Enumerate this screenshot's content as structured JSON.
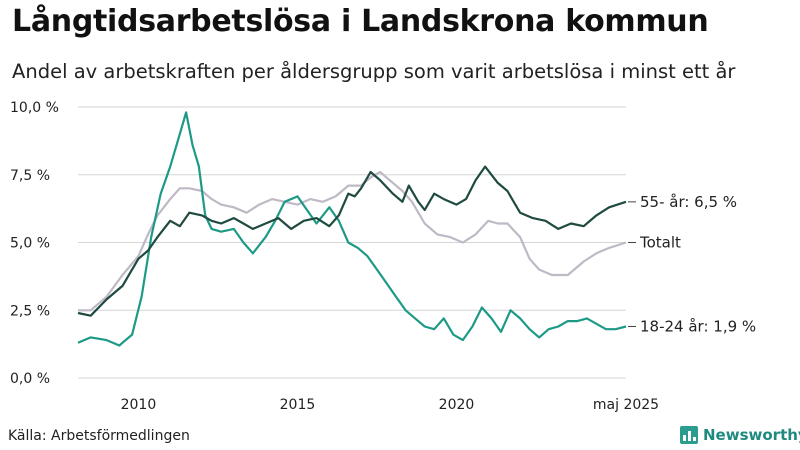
{
  "title": "Långtidsarbetslösa i Landskrona kommun",
  "subtitle": "Andel av arbetskraften per åldersgrupp som varit arbetslösa i minst ett år",
  "source": "Källa: Arbetsförmedlingen",
  "brand": "Newsworthy",
  "colors": {
    "series55": "#1f4a40",
    "total": "#bfb9c6",
    "youth": "#1d9a86",
    "brand": "#2a9d8f"
  },
  "chart_data": {
    "type": "line",
    "title": "Långtidsarbetslösa i Landskrona kommun",
    "ylim": [
      0,
      10
    ],
    "xlim": [
      2008.1,
      2025.33
    ],
    "y_ticks": [
      0,
      2.5,
      5,
      7.5,
      10
    ],
    "y_tick_labels": [
      "0,0 %",
      "2,5 %",
      "5,0 %",
      "7,5 %",
      "10,0 %"
    ],
    "x_ticks": [
      2010,
      2015,
      2020,
      2025.33
    ],
    "x_tick_labels": [
      "2010",
      "2015",
      "2020",
      "maj 2025"
    ],
    "grid": true,
    "series": [
      {
        "name": "55- år",
        "end_label": "55- år: 6,5 %",
        "color": "#1f4a40",
        "x": [
          2008.1,
          2008.5,
          2009.0,
          2009.5,
          2010.0,
          2010.3,
          2010.6,
          2011.0,
          2011.3,
          2011.6,
          2012.0,
          2012.3,
          2012.6,
          2013.0,
          2013.3,
          2013.6,
          2014.0,
          2014.4,
          2014.8,
          2015.2,
          2015.6,
          2016.0,
          2016.3,
          2016.6,
          2016.8,
          2017.0,
          2017.3,
          2017.6,
          2018.0,
          2018.3,
          2018.5,
          2018.8,
          2019.0,
          2019.3,
          2019.6,
          2020.0,
          2020.3,
          2020.6,
          2020.9,
          2021.1,
          2021.3,
          2021.6,
          2022.0,
          2022.4,
          2022.8,
          2023.2,
          2023.6,
          2024.0,
          2024.4,
          2024.8,
          2025.33
        ],
        "values": [
          2.4,
          2.3,
          2.9,
          3.4,
          4.4,
          4.7,
          5.2,
          5.8,
          5.6,
          6.1,
          6.0,
          5.8,
          5.7,
          5.9,
          5.7,
          5.5,
          5.7,
          5.9,
          5.5,
          5.8,
          5.9,
          5.6,
          6.0,
          6.8,
          6.7,
          7.0,
          7.6,
          7.3,
          6.8,
          6.5,
          7.1,
          6.5,
          6.2,
          6.8,
          6.6,
          6.4,
          6.6,
          7.3,
          7.8,
          7.5,
          7.2,
          6.9,
          6.1,
          5.9,
          5.8,
          5.5,
          5.7,
          5.6,
          6.0,
          6.3,
          6.5
        ]
      },
      {
        "name": "Totalt",
        "end_label": "Totalt",
        "color": "#bfb9c6",
        "x": [
          2008.1,
          2008.5,
          2009.0,
          2009.5,
          2010.0,
          2010.3,
          2010.6,
          2011.0,
          2011.3,
          2011.6,
          2012.0,
          2012.3,
          2012.6,
          2013.0,
          2013.4,
          2013.8,
          2014.2,
          2014.6,
          2015.0,
          2015.4,
          2015.8,
          2016.2,
          2016.6,
          2017.0,
          2017.3,
          2017.6,
          2018.0,
          2018.3,
          2018.6,
          2019.0,
          2019.4,
          2019.8,
          2020.2,
          2020.6,
          2021.0,
          2021.3,
          2021.6,
          2022.0,
          2022.3,
          2022.6,
          2023.0,
          2023.5,
          2024.0,
          2024.4,
          2024.8,
          2025.33
        ],
        "values": [
          2.5,
          2.5,
          3.0,
          3.8,
          4.5,
          5.3,
          6.0,
          6.6,
          7.0,
          7.0,
          6.9,
          6.6,
          6.4,
          6.3,
          6.1,
          6.4,
          6.6,
          6.5,
          6.4,
          6.6,
          6.5,
          6.7,
          7.1,
          7.1,
          7.4,
          7.6,
          7.2,
          6.9,
          6.5,
          5.7,
          5.3,
          5.2,
          5.0,
          5.3,
          5.8,
          5.7,
          5.7,
          5.2,
          4.4,
          4.0,
          3.8,
          3.8,
          4.3,
          4.6,
          4.8,
          5.0
        ]
      },
      {
        "name": "18-24 år",
        "end_label": "18-24 år: 1,9 %",
        "color": "#1d9a86",
        "x": [
          2008.1,
          2008.5,
          2009.0,
          2009.4,
          2009.8,
          2010.1,
          2010.4,
          2010.7,
          2011.0,
          2011.3,
          2011.5,
          2011.7,
          2011.9,
          2012.1,
          2012.3,
          2012.6,
          2013.0,
          2013.3,
          2013.6,
          2014.0,
          2014.3,
          2014.6,
          2015.0,
          2015.3,
          2015.6,
          2016.0,
          2016.3,
          2016.6,
          2016.9,
          2017.2,
          2017.5,
          2017.8,
          2018.1,
          2018.4,
          2018.7,
          2019.0,
          2019.3,
          2019.6,
          2019.9,
          2020.2,
          2020.5,
          2020.8,
          2021.1,
          2021.4,
          2021.7,
          2022.0,
          2022.3,
          2022.6,
          2022.9,
          2023.2,
          2023.5,
          2023.8,
          2024.1,
          2024.4,
          2024.7,
          2025.0,
          2025.33
        ],
        "values": [
          1.3,
          1.5,
          1.4,
          1.2,
          1.6,
          3.0,
          5.2,
          6.8,
          7.8,
          9.0,
          9.8,
          8.6,
          7.8,
          6.0,
          5.5,
          5.4,
          5.5,
          5.0,
          4.6,
          5.2,
          5.8,
          6.5,
          6.7,
          6.2,
          5.7,
          6.3,
          5.8,
          5.0,
          4.8,
          4.5,
          4.0,
          3.5,
          3.0,
          2.5,
          2.2,
          1.9,
          1.8,
          2.2,
          1.6,
          1.4,
          1.9,
          2.6,
          2.2,
          1.7,
          2.5,
          2.2,
          1.8,
          1.5,
          1.8,
          1.9,
          2.1,
          2.1,
          2.2,
          2.0,
          1.8,
          1.8,
          1.9
        ]
      }
    ]
  }
}
